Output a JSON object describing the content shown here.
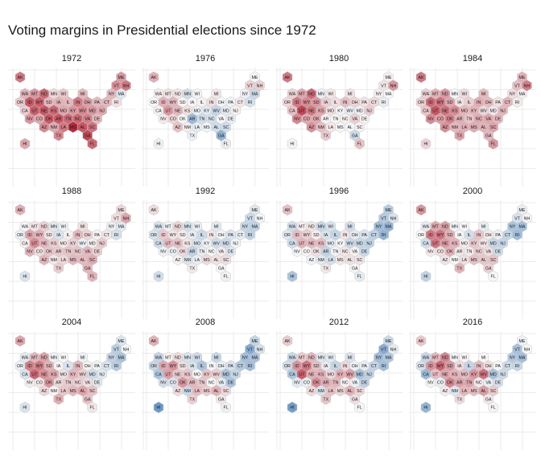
{
  "chart_data": {
    "type": "hexbin-map-small-multiples",
    "title": "Voting margins in Presidential elections since 1972",
    "xlabel": "",
    "ylabel": "",
    "grid": true,
    "legend": "none",
    "margin_scale": {
      "negative_color": "#2166ac",
      "zero_color": "#f7f7f7",
      "positive_color": "#b2182b",
      "domain": [
        -1,
        1
      ]
    },
    "states": [
      "AK",
      "ME",
      "VT",
      "NH",
      "WA",
      "MT",
      "ND",
      "MN",
      "WI",
      "MI",
      "NY",
      "MA",
      "OR",
      "ID",
      "WY",
      "SD",
      "IA",
      "IL",
      "IN",
      "OH",
      "PA",
      "CT",
      "RI",
      "CA",
      "UT",
      "NE",
      "KS",
      "MO",
      "KY",
      "WV",
      "MD",
      "NJ",
      "NV",
      "CO",
      "OK",
      "AR",
      "TN",
      "NC",
      "VA",
      "DE",
      "AZ",
      "NM",
      "LA",
      "MS",
      "AL",
      "SC",
      "TX",
      "GA",
      "HI",
      "FL"
    ],
    "panels": [
      {
        "year": "1972",
        "margins": {
          "AK": 0.4,
          "ME": 0.3,
          "VT": 0.33,
          "NH": 0.4,
          "WA": 0.22,
          "MT": 0.3,
          "ND": 0.45,
          "MN": 0.1,
          "WI": 0.15,
          "MI": 0.2,
          "NY": 0.2,
          "MA": -0.08,
          "OR": 0.14,
          "ID": 0.5,
          "WY": 0.48,
          "SD": 0.2,
          "IA": 0.22,
          "IL": 0.2,
          "IN": 0.4,
          "OH": 0.28,
          "PA": 0.2,
          "CT": 0.2,
          "RI": 0.07,
          "CA": 0.13,
          "UT": 0.48,
          "NE": 0.5,
          "KS": 0.45,
          "MO": 0.25,
          "KY": 0.3,
          "WV": 0.35,
          "MD": 0.3,
          "NJ": 0.25,
          "NV": 0.3,
          "CO": 0.25,
          "OK": 0.5,
          "AR": 0.5,
          "TN": 0.45,
          "NC": 0.45,
          "VA": 0.38,
          "DE": 0.2,
          "AZ": 0.35,
          "NM": 0.25,
          "LA": 0.4,
          "MS": 0.65,
          "AL": 0.5,
          "SC": 0.42,
          "TX": 0.35,
          "GA": 0.55,
          "HI": 0.25,
          "FL": 0.45
        }
      },
      {
        "year": "1976",
        "margins": {
          "AK": 0.23,
          "ME": 0.01,
          "VT": 0.12,
          "NH": 0.12,
          "WA": 0.04,
          "MT": 0.07,
          "ND": 0.06,
          "MN": -0.13,
          "WI": -0.02,
          "MI": 0.05,
          "NY": -0.04,
          "MA": -0.15,
          "OR": 0.0,
          "ID": 0.22,
          "WY": 0.2,
          "SD": 0.01,
          "IA": 0.01,
          "IL": 0.02,
          "IN": 0.08,
          "OH": -0.01,
          "PA": -0.03,
          "CT": 0.05,
          "RI": -0.11,
          "CA": 0.02,
          "UT": 0.3,
          "NE": 0.2,
          "KS": 0.07,
          "MO": -0.04,
          "KY": -0.07,
          "WV": -0.16,
          "MD": -0.06,
          "NJ": 0.02,
          "NV": 0.04,
          "CO": 0.11,
          "OK": 0.01,
          "AR": -0.3,
          "TN": -0.13,
          "NC": -0.11,
          "VA": 0.01,
          "DE": -0.05,
          "AZ": 0.17,
          "NM": 0.03,
          "LA": -0.06,
          "MS": -0.02,
          "AL": -0.13,
          "SC": -0.13,
          "TX": -0.03,
          "GA": -0.34,
          "HI": -0.03,
          "FL": -0.05
        }
      },
      {
        "year": "1980",
        "margins": {
          "AK": 0.4,
          "ME": 0.03,
          "VT": 0.06,
          "NH": 0.3,
          "WA": 0.12,
          "MT": 0.25,
          "ND": 0.45,
          "MN": -0.04,
          "WI": 0.05,
          "MI": 0.07,
          "NY": 0.03,
          "MA": 0.0,
          "OR": 0.1,
          "ID": 0.4,
          "WY": 0.35,
          "SD": 0.3,
          "IA": 0.13,
          "IL": 0.08,
          "IN": 0.18,
          "OH": 0.11,
          "PA": 0.07,
          "CT": 0.1,
          "RI": -0.05,
          "CA": 0.17,
          "UT": 0.55,
          "NE": 0.4,
          "KS": 0.25,
          "MO": 0.07,
          "KY": 0.01,
          "WV": -0.05,
          "MD": -0.03,
          "NJ": 0.13,
          "NV": 0.35,
          "CO": 0.25,
          "OK": 0.25,
          "AR": 0.01,
          "TN": 0.01,
          "NC": 0.02,
          "VA": 0.13,
          "DE": 0.02,
          "AZ": 0.32,
          "NM": 0.18,
          "LA": 0.05,
          "MS": 0.01,
          "AL": 0.01,
          "SC": 0.02,
          "TX": 0.14,
          "GA": -0.15,
          "HI": -0.02,
          "FL": 0.17
        }
      },
      {
        "year": "1984",
        "margins": {
          "AK": 0.4,
          "ME": 0.22,
          "VT": 0.18,
          "NH": 0.38,
          "WA": 0.13,
          "MT": 0.22,
          "ND": 0.3,
          "MN": -0.01,
          "WI": 0.09,
          "MI": 0.19,
          "NY": 0.08,
          "MA": 0.03,
          "OR": 0.12,
          "ID": 0.45,
          "WY": 0.43,
          "SD": 0.26,
          "IA": 0.07,
          "IL": 0.13,
          "IN": 0.24,
          "OH": 0.19,
          "PA": 0.07,
          "CT": 0.21,
          "RI": 0.04,
          "CA": 0.16,
          "UT": 0.5,
          "NE": 0.42,
          "KS": 0.34,
          "MO": 0.2,
          "KY": 0.21,
          "WV": 0.1,
          "MD": 0.05,
          "NJ": 0.2,
          "NV": 0.34,
          "CO": 0.28,
          "OK": 0.37,
          "AR": 0.23,
          "TN": 0.16,
          "NC": 0.24,
          "VA": 0.25,
          "DE": 0.2,
          "AZ": 0.33,
          "NM": 0.2,
          "LA": 0.23,
          "MS": 0.24,
          "AL": 0.22,
          "SC": 0.27,
          "TX": 0.27,
          "GA": 0.2,
          "HI": 0.11,
          "FL": 0.3
        }
      },
      {
        "year": "1988",
        "margins": {
          "AK": 0.23,
          "ME": 0.11,
          "VT": 0.08,
          "NH": 0.26,
          "WA": -0.01,
          "MT": 0.06,
          "ND": 0.13,
          "MN": -0.07,
          "WI": -0.03,
          "MI": 0.08,
          "NY": -0.04,
          "MA": -0.07,
          "OR": -0.04,
          "ID": 0.26,
          "WY": 0.22,
          "SD": 0.06,
          "IA": -0.1,
          "IL": 0.02,
          "IN": 0.2,
          "OH": 0.11,
          "PA": 0.02,
          "CT": 0.05,
          "RI": -0.11,
          "CA": 0.03,
          "UT": 0.34,
          "NE": 0.2,
          "KS": 0.13,
          "MO": 0.04,
          "KY": 0.12,
          "WV": -0.04,
          "MD": 0.03,
          "NJ": 0.14,
          "NV": 0.21,
          "CO": 0.08,
          "OK": 0.16,
          "AR": 0.14,
          "TN": 0.16,
          "NC": 0.16,
          "VA": 0.2,
          "DE": 0.12,
          "AZ": 0.21,
          "NM": 0.05,
          "LA": 0.1,
          "MS": 0.2,
          "AL": 0.19,
          "SC": 0.24,
          "TX": 0.13,
          "GA": 0.2,
          "HI": -0.09,
          "FL": 0.22
        }
      },
      {
        "year": "1992",
        "margins": {
          "AK": 0.09,
          "ME": -0.08,
          "VT": -0.15,
          "NH": -0.01,
          "WA": -0.11,
          "MT": -0.03,
          "ND": 0.12,
          "MN": -0.12,
          "WI": -0.04,
          "MI": -0.07,
          "NY": -0.16,
          "MA": -0.18,
          "OR": -0.1,
          "ID": 0.14,
          "WY": 0.06,
          "SD": 0.03,
          "IA": -0.06,
          "IL": -0.14,
          "IN": 0.06,
          "OH": -0.02,
          "PA": -0.09,
          "CT": -0.06,
          "RI": -0.18,
          "CA": -0.13,
          "UT": 0.19,
          "NE": 0.17,
          "KS": 0.05,
          "MO": -0.1,
          "KY": -0.03,
          "WV": -0.13,
          "MD": -0.14,
          "NJ": -0.02,
          "NV": -0.03,
          "CO": -0.04,
          "OK": 0.09,
          "AR": -0.18,
          "TN": -0.05,
          "NC": 0.01,
          "VA": 0.04,
          "DE": -0.08,
          "AZ": 0.02,
          "NM": -0.09,
          "LA": -0.05,
          "MS": 0.09,
          "AL": 0.07,
          "SC": 0.08,
          "TX": 0.04,
          "GA": -0.01,
          "HI": -0.12,
          "FL": 0.02
        }
      },
      {
        "year": "1996",
        "margins": {
          "AK": 0.18,
          "ME": -0.21,
          "VT": -0.22,
          "NH": -0.1,
          "WA": -0.13,
          "MT": 0.03,
          "ND": 0.06,
          "MN": -0.16,
          "WI": -0.1,
          "MI": -0.13,
          "NY": -0.29,
          "MA": -0.33,
          "OR": -0.08,
          "ID": 0.18,
          "WY": 0.13,
          "SD": 0.03,
          "IA": -0.1,
          "IL": -0.17,
          "IN": 0.06,
          "OH": -0.06,
          "PA": -0.09,
          "CT": -0.18,
          "RI": -0.33,
          "CA": -0.13,
          "UT": 0.21,
          "NE": 0.19,
          "KS": 0.18,
          "MO": -0.06,
          "KY": -0.01,
          "WV": -0.15,
          "MD": -0.16,
          "NJ": -0.18,
          "NV": -0.01,
          "CO": 0.01,
          "OK": 0.08,
          "AR": -0.17,
          "TN": -0.02,
          "NC": 0.05,
          "VA": 0.02,
          "DE": -0.15,
          "AZ": -0.02,
          "NM": -0.07,
          "LA": -0.12,
          "MS": 0.05,
          "AL": 0.07,
          "SC": 0.06,
          "TX": 0.05,
          "GA": 0.01,
          "HI": -0.25,
          "FL": -0.06
        }
      },
      {
        "year": "2000",
        "margins": {
          "AK": 0.31,
          "ME": -0.05,
          "VT": -0.1,
          "NH": 0.01,
          "WA": -0.06,
          "MT": 0.25,
          "ND": 0.28,
          "MN": -0.02,
          "WI": 0.0,
          "MI": -0.05,
          "NY": -0.25,
          "MA": -0.27,
          "OR": 0.0,
          "ID": 0.4,
          "WY": 0.41,
          "SD": 0.22,
          "IA": -0.01,
          "IL": -0.12,
          "IN": 0.16,
          "OH": 0.04,
          "PA": -0.04,
          "CT": -0.17,
          "RI": -0.29,
          "CA": -0.12,
          "UT": 0.41,
          "NE": 0.29,
          "KS": 0.21,
          "MO": 0.03,
          "KY": 0.15,
          "WV": 0.06,
          "MD": -0.16,
          "NJ": -0.16,
          "NV": 0.04,
          "CO": 0.08,
          "OK": 0.22,
          "AR": 0.05,
          "TN": 0.04,
          "NC": 0.13,
          "VA": 0.08,
          "DE": -0.13,
          "AZ": 0.06,
          "NM": 0.0,
          "LA": 0.08,
          "MS": 0.17,
          "AL": 0.15,
          "SC": 0.16,
          "TX": 0.21,
          "GA": 0.12,
          "HI": -0.18,
          "FL": 0.0
        }
      },
      {
        "year": "2004",
        "margins": {
          "AK": 0.26,
          "ME": -0.09,
          "VT": -0.2,
          "NH": -0.01,
          "WA": -0.07,
          "MT": 0.21,
          "ND": 0.27,
          "MN": -0.03,
          "WI": 0.0,
          "MI": -0.03,
          "NY": -0.18,
          "MA": -0.25,
          "OR": -0.04,
          "ID": 0.38,
          "WY": 0.4,
          "SD": 0.22,
          "IA": 0.01,
          "IL": -0.1,
          "IN": 0.21,
          "OH": 0.02,
          "PA": -0.03,
          "CT": -0.1,
          "RI": -0.21,
          "CA": -0.1,
          "UT": 0.46,
          "NE": 0.33,
          "KS": 0.25,
          "MO": 0.07,
          "KY": 0.2,
          "WV": 0.13,
          "MD": -0.13,
          "NJ": -0.07,
          "NV": 0.03,
          "CO": 0.05,
          "OK": 0.31,
          "AR": 0.1,
          "TN": 0.14,
          "NC": 0.12,
          "VA": 0.08,
          "DE": -0.08,
          "AZ": 0.1,
          "NM": 0.01,
          "LA": 0.15,
          "MS": 0.2,
          "AL": 0.26,
          "SC": 0.17,
          "TX": 0.23,
          "GA": 0.17,
          "HI": -0.09,
          "FL": 0.05
        }
      },
      {
        "year": "2008",
        "margins": {
          "AK": 0.22,
          "ME": -0.17,
          "VT": -0.37,
          "NH": -0.1,
          "WA": -0.17,
          "MT": 0.02,
          "ND": 0.09,
          "MN": -0.1,
          "WI": -0.14,
          "MI": -0.16,
          "NY": -0.27,
          "MA": -0.26,
          "OR": -0.16,
          "ID": 0.25,
          "WY": 0.32,
          "SD": 0.08,
          "IA": -0.1,
          "IL": -0.25,
          "IN": -0.01,
          "OH": -0.05,
          "PA": -0.1,
          "CT": -0.22,
          "RI": -0.28,
          "CA": -0.24,
          "UT": 0.28,
          "NE": 0.15,
          "KS": 0.15,
          "MO": 0.0,
          "KY": 0.16,
          "WV": 0.13,
          "MD": -0.25,
          "NJ": -0.16,
          "NV": -0.12,
          "CO": -0.09,
          "OK": 0.31,
          "AR": 0.2,
          "TN": 0.15,
          "NC": 0.0,
          "VA": -0.06,
          "DE": -0.25,
          "AZ": 0.09,
          "NM": -0.15,
          "LA": 0.19,
          "MS": 0.13,
          "AL": 0.22,
          "SC": 0.09,
          "TX": 0.12,
          "GA": 0.05,
          "HI": -0.45,
          "FL": -0.03
        }
      },
      {
        "year": "2012",
        "margins": {
          "AK": 0.14,
          "ME": -0.15,
          "VT": -0.36,
          "NH": -0.06,
          "WA": -0.15,
          "MT": 0.14,
          "ND": 0.2,
          "MN": -0.08,
          "WI": -0.07,
          "MI": -0.1,
          "NY": -0.28,
          "MA": -0.23,
          "OR": -0.12,
          "ID": 0.32,
          "WY": 0.41,
          "SD": 0.18,
          "IA": -0.06,
          "IL": -0.17,
          "IN": 0.1,
          "OH": -0.03,
          "PA": -0.05,
          "CT": -0.17,
          "RI": -0.27,
          "CA": -0.23,
          "UT": 0.48,
          "NE": 0.22,
          "KS": 0.22,
          "MO": 0.09,
          "KY": 0.23,
          "WV": 0.27,
          "MD": -0.26,
          "NJ": -0.18,
          "NV": -0.07,
          "CO": -0.05,
          "OK": 0.34,
          "AR": 0.24,
          "TN": 0.2,
          "NC": 0.02,
          "VA": -0.04,
          "DE": -0.19,
          "AZ": 0.09,
          "NM": -0.1,
          "LA": 0.17,
          "MS": 0.11,
          "AL": 0.22,
          "SC": 0.1,
          "TX": 0.16,
          "GA": 0.08,
          "HI": -0.43,
          "FL": -0.01
        }
      },
      {
        "year": "2016",
        "margins": {
          "AK": 0.15,
          "ME": -0.03,
          "VT": -0.26,
          "NH": 0.0,
          "WA": -0.16,
          "MT": 0.2,
          "ND": 0.36,
          "MN": -0.02,
          "WI": 0.01,
          "MI": 0.0,
          "NY": -0.22,
          "MA": -0.27,
          "OR": -0.11,
          "ID": 0.32,
          "WY": 0.46,
          "SD": 0.3,
          "IA": 0.09,
          "IL": -0.17,
          "IN": 0.19,
          "OH": 0.08,
          "PA": 0.01,
          "CT": -0.14,
          "RI": -0.16,
          "CA": -0.3,
          "UT": 0.18,
          "NE": 0.25,
          "KS": 0.21,
          "MO": 0.19,
          "KY": 0.3,
          "WV": 0.42,
          "MD": -0.26,
          "NJ": -0.14,
          "NV": -0.02,
          "CO": -0.05,
          "OK": 0.36,
          "AR": 0.27,
          "TN": 0.26,
          "NC": 0.04,
          "VA": -0.05,
          "DE": -0.11,
          "AZ": 0.04,
          "NM": -0.08,
          "LA": 0.2,
          "MS": 0.18,
          "AL": 0.28,
          "SC": 0.14,
          "TX": 0.09,
          "GA": 0.05,
          "HI": -0.32,
          "FL": 0.01
        }
      }
    ]
  }
}
